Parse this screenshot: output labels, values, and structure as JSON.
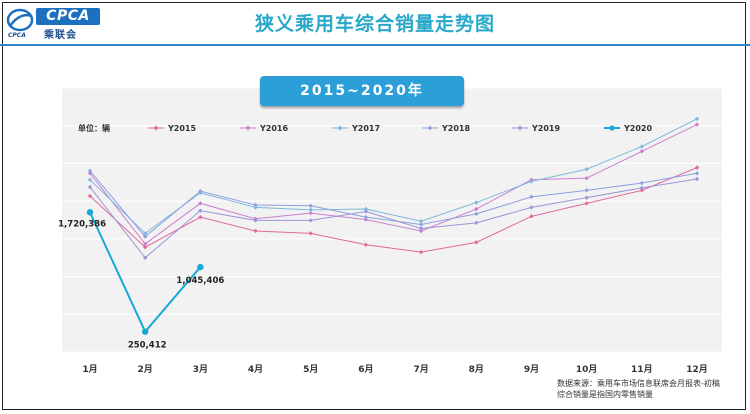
{
  "logo": {
    "brand": "CPCA",
    "name_cn": "乘联会",
    "sub": "CPCA"
  },
  "title": "狭义乘用车综合销量走势图",
  "banner": "2015~2020年",
  "source_line1": "数据来源：乘用车市场信息联席会月报表-初稿",
  "source_line2": "综合销量是指国内零售销量",
  "colors": {
    "title": "#2aa8c9",
    "banner": "#2d9fd8",
    "plot_bg": "#f2f2f2"
  },
  "chart_data": {
    "type": "line",
    "title": "",
    "xlabel": "",
    "ylabel": "",
    "unit_label": "单位：辆",
    "categories": [
      "1月",
      "2月",
      "3月",
      "4月",
      "5月",
      "6月",
      "7月",
      "8月",
      "9月",
      "10月",
      "11月",
      "12月"
    ],
    "ylim": [
      0,
      3250000
    ],
    "gridlines": 7,
    "legend_placement": "top",
    "series": [
      {
        "name": "Y2015",
        "color": "#e06a9a",
        "marker": "diamond",
        "values": [
          1920000,
          1290000,
          1660000,
          1490000,
          1460000,
          1320000,
          1230000,
          1350000,
          1670000,
          1830000,
          1990000,
          2270000
        ]
      },
      {
        "name": "Y2016",
        "color": "#c97fcf",
        "marker": "diamond",
        "values": [
          2200000,
          1330000,
          1830000,
          1640000,
          1710000,
          1630000,
          1490000,
          1760000,
          2120000,
          2140000,
          2470000,
          2800000
        ]
      },
      {
        "name": "Y2017",
        "color": "#7fb8dc",
        "marker": "diamond",
        "values": [
          2120000,
          1460000,
          1960000,
          1780000,
          1750000,
          1760000,
          1610000,
          1840000,
          2100000,
          2250000,
          2530000,
          2870000
        ]
      },
      {
        "name": "Y2018",
        "color": "#8ea1e0",
        "marker": "diamond",
        "values": [
          2230000,
          1420000,
          1980000,
          1810000,
          1800000,
          1660000,
          1570000,
          1700000,
          1910000,
          1990000,
          2080000,
          2200000
        ]
      },
      {
        "name": "Y2019",
        "color": "#9a96d8",
        "marker": "diamond",
        "values": [
          2030000,
          1160000,
          1740000,
          1620000,
          1620000,
          1730000,
          1520000,
          1590000,
          1780000,
          1900000,
          2020000,
          2130000
        ]
      },
      {
        "name": "Y2020",
        "color": "#17a9d8",
        "marker": "circle",
        "values": [
          1720386,
          250412,
          1045406,
          null,
          null,
          null,
          null,
          null,
          null,
          null,
          null,
          null
        ]
      }
    ],
    "data_labels": [
      {
        "series": "Y2020",
        "index": 0,
        "text": "1,720,386"
      },
      {
        "series": "Y2020",
        "index": 1,
        "text": "250,412"
      },
      {
        "series": "Y2020",
        "index": 2,
        "text": "1,045,406"
      }
    ]
  }
}
